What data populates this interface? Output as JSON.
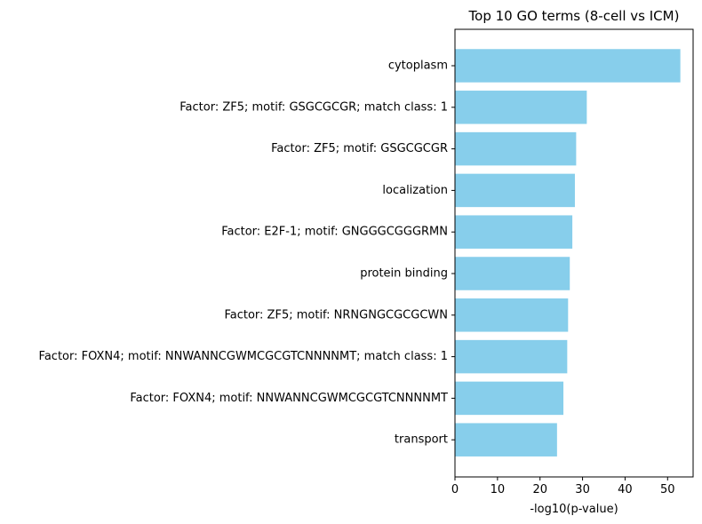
{
  "chart_data": {
    "type": "bar",
    "orientation": "horizontal",
    "title": "Top 10 GO terms (8-cell vs ICM)",
    "xlabel": "-log10(p-value)",
    "ylabel": "",
    "categories": [
      "cytoplasm",
      "Factor: ZF5; motif: GSGCGCGR; match class: 1",
      "Factor: ZF5; motif: GSGCGCGR",
      "localization",
      "Factor: E2F-1; motif: GNGGGCGGGRMN",
      "protein binding",
      "Factor: ZF5; motif: NRNGNGCGCGCWN",
      "Factor: FOXN4; motif: NNWANNCGWMCGCGTCNNNNMT; match class: 1",
      "Factor: FOXN4; motif: NNWANNCGWMCGCGTCNNNNMT",
      "transport"
    ],
    "values": [
      53.0,
      31.0,
      28.5,
      28.2,
      27.6,
      27.0,
      26.6,
      26.4,
      25.5,
      24.0
    ],
    "xlim": [
      0,
      56
    ],
    "xticks": [
      "0",
      "10",
      "20",
      "30",
      "40",
      "50"
    ],
    "grid": false,
    "bar_color": "#87ceeb"
  }
}
